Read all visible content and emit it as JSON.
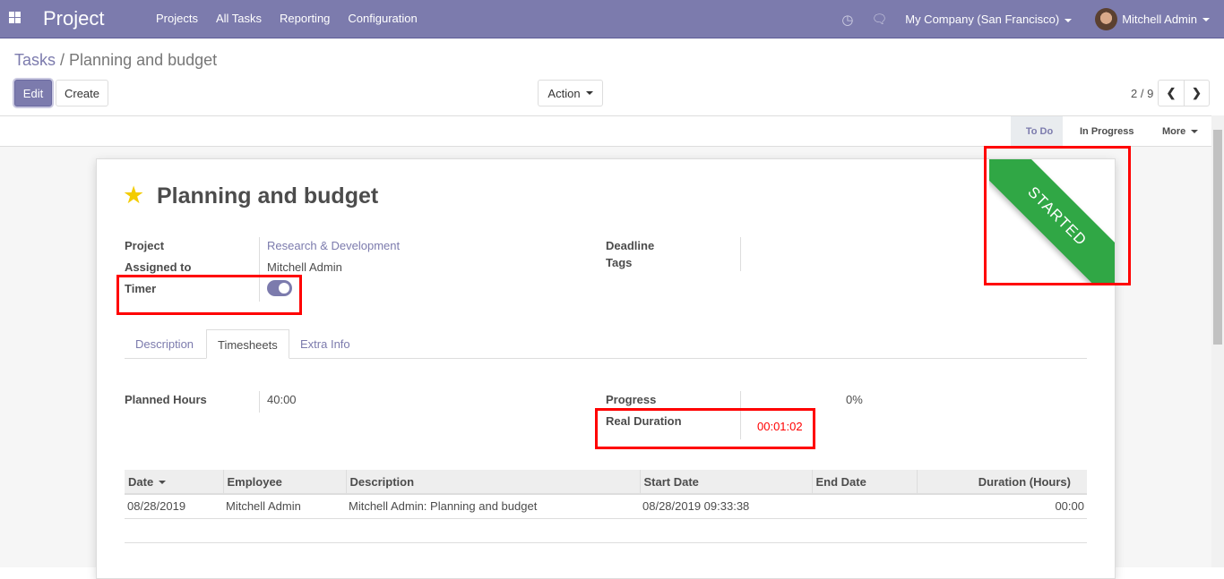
{
  "nav": {
    "app_title": "Project",
    "menu": [
      "Projects",
      "All Tasks",
      "Reporting",
      "Configuration"
    ],
    "company": "My Company (San Francisco)",
    "user": "Mitchell Admin"
  },
  "breadcrumb": {
    "parent": "Tasks",
    "current": "Planning and budget"
  },
  "toolbar": {
    "edit": "Edit",
    "create": "Create",
    "action": "Action",
    "pager": "2 / 9"
  },
  "stages": {
    "todo": "To Do",
    "in_progress": "In Progress",
    "more": "More"
  },
  "ribbon": {
    "text": "STARTED",
    "color": "#30a745"
  },
  "task": {
    "title": "Planning and budget",
    "starred": true,
    "fields": {
      "project_label": "Project",
      "project": "Research & Development",
      "assigned_label": "Assigned to",
      "assigned": "Mitchell Admin",
      "timer_label": "Timer",
      "timer_on": true,
      "deadline_label": "Deadline",
      "tags_label": "Tags"
    }
  },
  "tabs": [
    "Description",
    "Timesheets",
    "Extra Info"
  ],
  "timesheets": {
    "planned_label": "Planned Hours",
    "planned": "40:00",
    "progress_label": "Progress",
    "progress": "0%",
    "real_label": "Real Duration",
    "real": "00:01:02",
    "columns": [
      "Date",
      "Employee",
      "Description",
      "Start Date",
      "End Date",
      "Duration (Hours)"
    ],
    "rows": [
      [
        "08/28/2019",
        "Mitchell Admin",
        "Mitchell Admin: Planning and budget",
        "08/28/2019 09:33:38",
        "",
        "00:00"
      ]
    ]
  }
}
